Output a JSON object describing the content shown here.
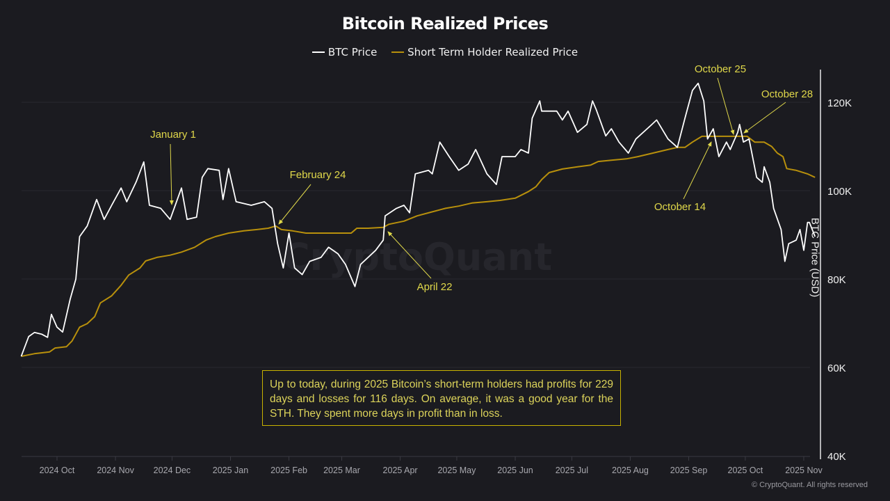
{
  "chart_data": {
    "type": "line",
    "title": "Bitcoin Realized Prices",
    "ylabel": "BTC Price (USD)",
    "xlabel": "",
    "ylim": [
      40000,
      120000
    ],
    "y_ticks": [
      {
        "value": 40000,
        "label": "40K"
      },
      {
        "value": 60000,
        "label": "60K"
      },
      {
        "value": 80000,
        "label": "80K"
      },
      {
        "value": 100000,
        "label": "100K"
      },
      {
        "value": 120000,
        "label": "120K"
      }
    ],
    "x_ticks": [
      {
        "date": "2024-10-01",
        "label": "2024 Oct"
      },
      {
        "date": "2024-11-01",
        "label": "2024 Nov"
      },
      {
        "date": "2024-12-01",
        "label": "2024 Dec"
      },
      {
        "date": "2025-01-01",
        "label": "2025 Jan"
      },
      {
        "date": "2025-02-01",
        "label": "2025 Feb"
      },
      {
        "date": "2025-03-01",
        "label": "2025 Mar"
      },
      {
        "date": "2025-04-01",
        "label": "2025 Apr"
      },
      {
        "date": "2025-05-01",
        "label": "2025 May"
      },
      {
        "date": "2025-06-01",
        "label": "2025 Jun"
      },
      {
        "date": "2025-07-01",
        "label": "2025 Jul"
      },
      {
        "date": "2025-08-01",
        "label": "2025 Aug"
      },
      {
        "date": "2025-09-01",
        "label": "2025 Sep"
      },
      {
        "date": "2025-10-01",
        "label": "2025 Oct"
      },
      {
        "date": "2025-11-01",
        "label": "2025 Nov"
      }
    ],
    "grid": true,
    "legend_position": "top-center",
    "series": [
      {
        "name": "BTC Price",
        "color": "#ffffff",
        "points": [
          [
            "2024-09-12",
            62500
          ],
          [
            "2024-09-16",
            67000
          ],
          [
            "2024-09-19",
            67900
          ],
          [
            "2024-09-23",
            67500
          ],
          [
            "2024-09-26",
            66800
          ],
          [
            "2024-09-28",
            72000
          ],
          [
            "2024-10-01",
            69100
          ],
          [
            "2024-10-04",
            68000
          ],
          [
            "2024-10-08",
            75500
          ],
          [
            "2024-10-11",
            80000
          ],
          [
            "2024-10-13",
            89600
          ],
          [
            "2024-10-17",
            92000
          ],
          [
            "2024-10-22",
            98000
          ],
          [
            "2024-10-26",
            93500
          ],
          [
            "2024-10-30",
            96700
          ],
          [
            "2024-11-04",
            100600
          ],
          [
            "2024-11-07",
            97500
          ],
          [
            "2024-11-12",
            102000
          ],
          [
            "2024-11-16",
            106500
          ],
          [
            "2024-11-19",
            96700
          ],
          [
            "2024-11-25",
            96000
          ],
          [
            "2024-11-30",
            93500
          ],
          [
            "2024-12-06",
            100600
          ],
          [
            "2024-12-09",
            93500
          ],
          [
            "2024-12-14",
            94000
          ],
          [
            "2024-12-17",
            103000
          ],
          [
            "2024-12-20",
            105000
          ],
          [
            "2024-12-26",
            104600
          ],
          [
            "2024-12-28",
            98000
          ],
          [
            "2024-12-31",
            105000
          ],
          [
            "2025-01-04",
            97500
          ],
          [
            "2025-01-12",
            96700
          ],
          [
            "2025-01-19",
            97500
          ],
          [
            "2025-01-23",
            96000
          ],
          [
            "2025-01-26",
            88000
          ],
          [
            "2025-01-29",
            82500
          ],
          [
            "2025-02-01",
            90400
          ],
          [
            "2025-02-04",
            82500
          ],
          [
            "2025-02-08",
            81000
          ],
          [
            "2025-02-12",
            84000
          ],
          [
            "2025-02-18",
            84900
          ],
          [
            "2025-02-22",
            87200
          ],
          [
            "2025-02-27",
            85700
          ],
          [
            "2025-03-03",
            83300
          ],
          [
            "2025-03-08",
            78300
          ],
          [
            "2025-03-11",
            83300
          ],
          [
            "2025-03-19",
            86500
          ],
          [
            "2025-03-23",
            88800
          ],
          [
            "2025-03-24",
            94300
          ],
          [
            "2025-03-30",
            96000
          ],
          [
            "2025-04-03",
            96700
          ],
          [
            "2025-04-06",
            95000
          ],
          [
            "2025-04-09",
            103800
          ],
          [
            "2025-04-16",
            104600
          ],
          [
            "2025-04-18",
            103800
          ],
          [
            "2025-04-22",
            111000
          ],
          [
            "2025-04-27",
            107700
          ],
          [
            "2025-05-02",
            104600
          ],
          [
            "2025-05-07",
            106000
          ],
          [
            "2025-05-11",
            109300
          ],
          [
            "2025-05-17",
            103800
          ],
          [
            "2025-05-22",
            101400
          ],
          [
            "2025-05-25",
            107700
          ],
          [
            "2025-06-01",
            107700
          ],
          [
            "2025-06-04",
            109300
          ],
          [
            "2025-06-08",
            108500
          ],
          [
            "2025-06-10",
            116400
          ],
          [
            "2025-06-14",
            120300
          ],
          [
            "2025-06-15",
            118000
          ],
          [
            "2025-06-23",
            118000
          ],
          [
            "2025-06-26",
            116000
          ],
          [
            "2025-06-29",
            118000
          ],
          [
            "2025-07-04",
            113200
          ],
          [
            "2025-07-09",
            115000
          ],
          [
            "2025-07-12",
            120300
          ],
          [
            "2025-07-14",
            118300
          ],
          [
            "2025-07-19",
            112400
          ],
          [
            "2025-07-22",
            114000
          ],
          [
            "2025-07-26",
            111000
          ],
          [
            "2025-07-31",
            108500
          ],
          [
            "2025-08-04",
            111700
          ],
          [
            "2025-08-12",
            114800
          ],
          [
            "2025-08-15",
            116000
          ],
          [
            "2025-08-21",
            111700
          ],
          [
            "2025-08-26",
            109800
          ],
          [
            "2025-08-30",
            116400
          ],
          [
            "2025-09-03",
            122700
          ],
          [
            "2025-09-06",
            124300
          ],
          [
            "2025-09-09",
            120300
          ],
          [
            "2025-09-11",
            111700
          ],
          [
            "2025-09-14",
            114000
          ],
          [
            "2025-09-17",
            107700
          ],
          [
            "2025-09-21",
            111000
          ],
          [
            "2025-09-23",
            109300
          ],
          [
            "2025-09-27",
            113200
          ],
          [
            "2025-09-28",
            115000
          ],
          [
            "2025-09-30",
            111000
          ],
          [
            "2025-10-03",
            111700
          ],
          [
            "2025-10-07",
            103000
          ],
          [
            "2025-10-10",
            101900
          ],
          [
            "2025-10-11",
            105400
          ],
          [
            "2025-10-14",
            101900
          ],
          [
            "2025-10-16",
            96000
          ],
          [
            "2025-10-20",
            91200
          ],
          [
            "2025-10-22",
            84000
          ],
          [
            "2025-10-24",
            88000
          ],
          [
            "2025-10-28",
            88800
          ],
          [
            "2025-10-30",
            91200
          ],
          [
            "2025-11-01",
            86500
          ],
          [
            "2025-11-03",
            92800
          ],
          [
            "2025-11-04",
            92800
          ],
          [
            "2025-11-07",
            89600
          ]
        ]
      },
      {
        "name": "Short Term Holder Realized Price",
        "color": "#b8900c",
        "points": [
          [
            "2024-09-12",
            62500
          ],
          [
            "2024-09-19",
            63100
          ],
          [
            "2024-09-27",
            63500
          ],
          [
            "2024-09-30",
            64400
          ],
          [
            "2024-10-06",
            64700
          ],
          [
            "2024-10-09",
            66000
          ],
          [
            "2024-10-13",
            69100
          ],
          [
            "2024-10-17",
            69900
          ],
          [
            "2024-10-21",
            71500
          ],
          [
            "2024-10-24",
            74600
          ],
          [
            "2024-10-30",
            76200
          ],
          [
            "2024-11-04",
            78600
          ],
          [
            "2024-11-08",
            80900
          ],
          [
            "2024-11-14",
            82500
          ],
          [
            "2024-11-17",
            84100
          ],
          [
            "2024-11-23",
            84900
          ],
          [
            "2024-11-30",
            85400
          ],
          [
            "2024-12-06",
            86100
          ],
          [
            "2024-12-13",
            87200
          ],
          [
            "2024-12-19",
            88800
          ],
          [
            "2024-12-24",
            89600
          ],
          [
            "2024-12-31",
            90400
          ],
          [
            "2025-01-08",
            90900
          ],
          [
            "2025-01-15",
            91200
          ],
          [
            "2025-01-21",
            91500
          ],
          [
            "2025-01-25",
            92000
          ],
          [
            "2025-01-28",
            91200
          ],
          [
            "2025-02-03",
            90900
          ],
          [
            "2025-02-10",
            90400
          ],
          [
            "2025-02-17",
            90400
          ],
          [
            "2025-02-25",
            90400
          ],
          [
            "2025-03-06",
            90400
          ],
          [
            "2025-03-09",
            91500
          ],
          [
            "2025-03-15",
            91500
          ],
          [
            "2025-03-23",
            91700
          ],
          [
            "2025-03-26",
            92400
          ],
          [
            "2025-04-03",
            93100
          ],
          [
            "2025-04-10",
            94300
          ],
          [
            "2025-04-17",
            95100
          ],
          [
            "2025-04-25",
            96000
          ],
          [
            "2025-05-02",
            96500
          ],
          [
            "2025-05-09",
            97200
          ],
          [
            "2025-05-17",
            97500
          ],
          [
            "2025-05-24",
            97800
          ],
          [
            "2025-06-01",
            98300
          ],
          [
            "2025-06-08",
            99800
          ],
          [
            "2025-06-12",
            100900
          ],
          [
            "2025-06-15",
            102500
          ],
          [
            "2025-06-19",
            104100
          ],
          [
            "2025-06-26",
            104900
          ],
          [
            "2025-07-04",
            105400
          ],
          [
            "2025-07-11",
            105800
          ],
          [
            "2025-07-15",
            106600
          ],
          [
            "2025-07-22",
            106900
          ],
          [
            "2025-07-30",
            107200
          ],
          [
            "2025-08-05",
            107700
          ],
          [
            "2025-08-13",
            108500
          ],
          [
            "2025-08-21",
            109300
          ],
          [
            "2025-08-26",
            109800
          ],
          [
            "2025-08-30",
            109800
          ],
          [
            "2025-09-03",
            111000
          ],
          [
            "2025-09-08",
            112300
          ],
          [
            "2025-09-12",
            112300
          ],
          [
            "2025-09-19",
            112300
          ],
          [
            "2025-09-27",
            112300
          ],
          [
            "2025-10-02",
            112300
          ],
          [
            "2025-10-06",
            111000
          ],
          [
            "2025-10-11",
            111000
          ],
          [
            "2025-10-15",
            110000
          ],
          [
            "2025-10-18",
            108500
          ],
          [
            "2025-10-21",
            107700
          ],
          [
            "2025-10-23",
            105000
          ],
          [
            "2025-10-28",
            104600
          ],
          [
            "2025-11-03",
            103800
          ],
          [
            "2025-11-07",
            103000
          ]
        ]
      }
    ],
    "annotations": [
      {
        "label": "January 1",
        "target_series": "BTC Price"
      },
      {
        "label": "February 24",
        "target_series": "Short Term Holder Realized Price"
      },
      {
        "label": "April 22",
        "target_series": "Short Term Holder Realized Price"
      },
      {
        "label": "October 14",
        "target_series": "Short Term Holder Realized Price"
      },
      {
        "label": "October 25",
        "target_series": "Short Term Holder Realized Price"
      },
      {
        "label": "October 28",
        "target_series": "Short Term Holder Realized Price"
      }
    ],
    "annotation_color": "#e0d84a",
    "note": "Up to today, during 2025 Bitcoin’s short-term holders had profits for 229 days and losses for 116 days. On average, it was a good year for the STH. They spent more days in profit than in loss.",
    "note_border_color": "#c9b300"
  },
  "watermark": "CryptoQuant",
  "copyright": "© CryptoQuant. All rights reserved",
  "colors": {
    "background": "#1b1b20",
    "grid": "#2a2a30"
  }
}
